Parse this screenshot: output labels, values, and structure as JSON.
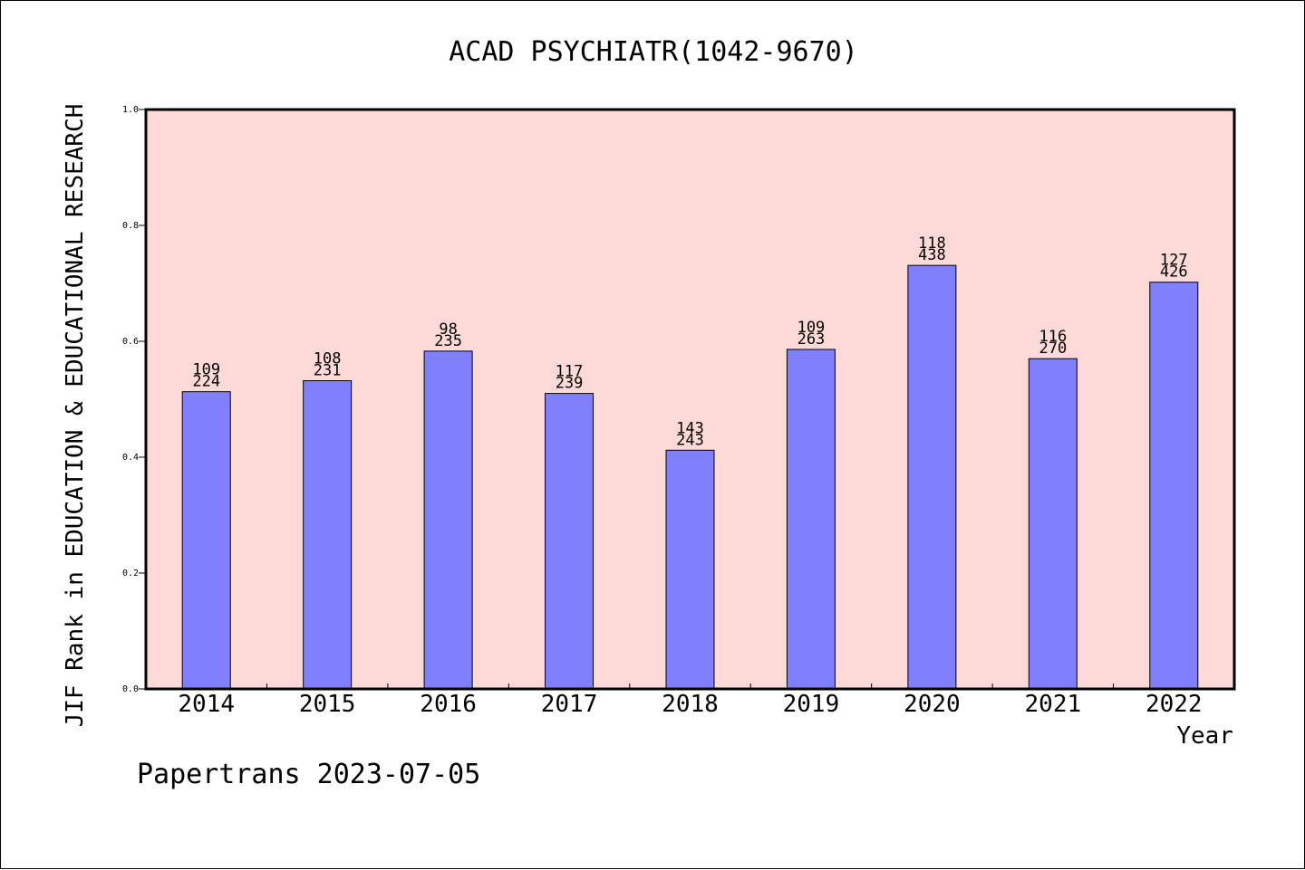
{
  "chart_data": {
    "type": "bar",
    "title": "ACAD PSYCHIATR(1042-9670)",
    "xlabel": "Year",
    "ylabel": "JIF Rank in EDUCATION & EDUCATIONAL RESEARCH",
    "ylim": [
      0,
      1.0
    ],
    "yticks": [
      "0.0",
      "0.2",
      "0.4",
      "0.6",
      "0.8",
      "1.0"
    ],
    "categories": [
      "2014",
      "2015",
      "2016",
      "2017",
      "2018",
      "2019",
      "2020",
      "2021",
      "2022"
    ],
    "values": [
      0.513,
      0.532,
      0.583,
      0.51,
      0.412,
      0.586,
      0.731,
      0.57,
      0.702
    ],
    "rank_labels": [
      "109",
      "108",
      "98",
      "117",
      "143",
      "109",
      "118",
      "116",
      "127"
    ],
    "total_labels": [
      "224",
      "231",
      "235",
      "239",
      "243",
      "263",
      "438",
      "270",
      "426"
    ],
    "grid": false,
    "colors": {
      "plot_background": "#fddad8",
      "bar_fill": "#8080ff",
      "bar_stroke": "#000000"
    }
  },
  "footer": {
    "text": "Papertrans 2023-07-05"
  }
}
